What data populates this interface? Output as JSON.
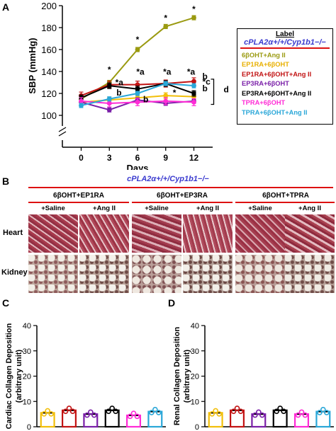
{
  "panels": {
    "a": "A",
    "b": "B",
    "c": "C",
    "d": "D"
  },
  "panel_b": {
    "genotype": "cPLA2α+/+/Cyp1b1−/−",
    "groups": [
      "6βOHT+EP1RA",
      "6βOHT+EP3RA",
      "6βOHT+TPRA"
    ],
    "conditions": [
      "+Saline",
      "+Ang II",
      "+Saline",
      "+Ang II",
      "+Saline",
      "+Ang II"
    ],
    "rows": [
      "Heart",
      "Kidney"
    ],
    "colors": {
      "heart_tissue": "#a83a4c",
      "kidney_tissue": "#b8a49a",
      "header_line": "#dd1111"
    }
  },
  "chart_data": [
    {
      "type": "line",
      "panel": "A",
      "x": [
        0,
        3,
        6,
        9,
        12
      ],
      "xlabel": "Days",
      "ylabel": "SBP (mmHg)",
      "ylim": [
        100,
        200
      ],
      "yticks": [
        100,
        120,
        140,
        160,
        180,
        200
      ],
      "axis_break": true,
      "series": [
        {
          "name": "6βOHT+Ang II",
          "color": "#9a9a10",
          "values": [
            115,
            130,
            160,
            181,
            189
          ]
        },
        {
          "name": "EP1RA+6βOHT",
          "color": "#f2bf0a",
          "values": [
            112,
            114,
            116,
            118,
            117
          ]
        },
        {
          "name": "EP1RA+6βOHT+Ang II",
          "color": "#c21313",
          "values": [
            118,
            128,
            128,
            129,
            131
          ]
        },
        {
          "name": "EP3RA+6βOHT",
          "color": "#7a1fa8",
          "values": [
            112,
            105,
            114,
            111,
            113
          ]
        },
        {
          "name": "EP3RA+6βOHT+Ang II",
          "color": "#000000",
          "values": [
            116,
            127,
            124,
            129,
            120
          ]
        },
        {
          "name": "TPRA+6βOHT",
          "color": "#ff2bd6",
          "values": [
            113,
            111,
            112,
            113,
            112
          ]
        },
        {
          "name": "TPRA+6βOHT+Ang II",
          "color": "#2aa7d8",
          "values": [
            109,
            115,
            120,
            129,
            127
          ]
        }
      ],
      "annotations": [
        "*",
        "*",
        "*",
        "*",
        "*a",
        "*a",
        "*a",
        "*a",
        "b",
        "b",
        "b",
        "b",
        "*c",
        "*",
        "d"
      ],
      "legend": {
        "title": "Label",
        "genotype": "cPLA2α+/+/Cyp1b1−/−",
        "entries": [
          "6βOHT+Ang II",
          "EP1RA+6βOHT",
          "EP1RA+6βOHT+Ang II",
          "EP3RA+6βOHT",
          "EP3RA+6βOHT+Ang II",
          "TPRA+6βOHT",
          "TPRA+6βOHT+Ang II"
        ],
        "placement": "right"
      }
    },
    {
      "type": "bar",
      "panel": "C",
      "ylabel": "Cardiac Collagen Deposition (arbitrary unit)",
      "ylim": [
        0,
        40
      ],
      "yticks": [
        0,
        10,
        20,
        30,
        40
      ],
      "categories": [
        "EP1RA+6βOHT",
        "EP1RA+6βOHT+Ang II",
        "EP3RA+6βOHT",
        "EP3RA+6βOHT+Ang II",
        "TPRA+6βOHT",
        "TPRA+6βOHT+Ang II"
      ],
      "colors": [
        "#f2bf0a",
        "#c21313",
        "#7a1fa8",
        "#000000",
        "#ff2bd6",
        "#2aa7d8"
      ],
      "values": [
        5.5,
        6.5,
        5.0,
        6.5,
        4.5,
        6.0
      ]
    },
    {
      "type": "bar",
      "panel": "D",
      "ylabel": "Renal Collagen Deposition (arbitrary unit)",
      "ylim": [
        0,
        40
      ],
      "yticks": [
        0,
        10,
        20,
        30,
        40
      ],
      "categories": [
        "EP1RA+6βOHT",
        "EP1RA+6βOHT+Ang II",
        "EP3RA+6βOHT",
        "EP3RA+6βOHT+Ang II",
        "TPRA+6βOHT",
        "TPRA+6βOHT+Ang II"
      ],
      "colors": [
        "#f2bf0a",
        "#c21313",
        "#7a1fa8",
        "#000000",
        "#ff2bd6",
        "#2aa7d8"
      ],
      "values": [
        5.5,
        6.5,
        5.0,
        6.5,
        5.0,
        6.0
      ]
    }
  ]
}
